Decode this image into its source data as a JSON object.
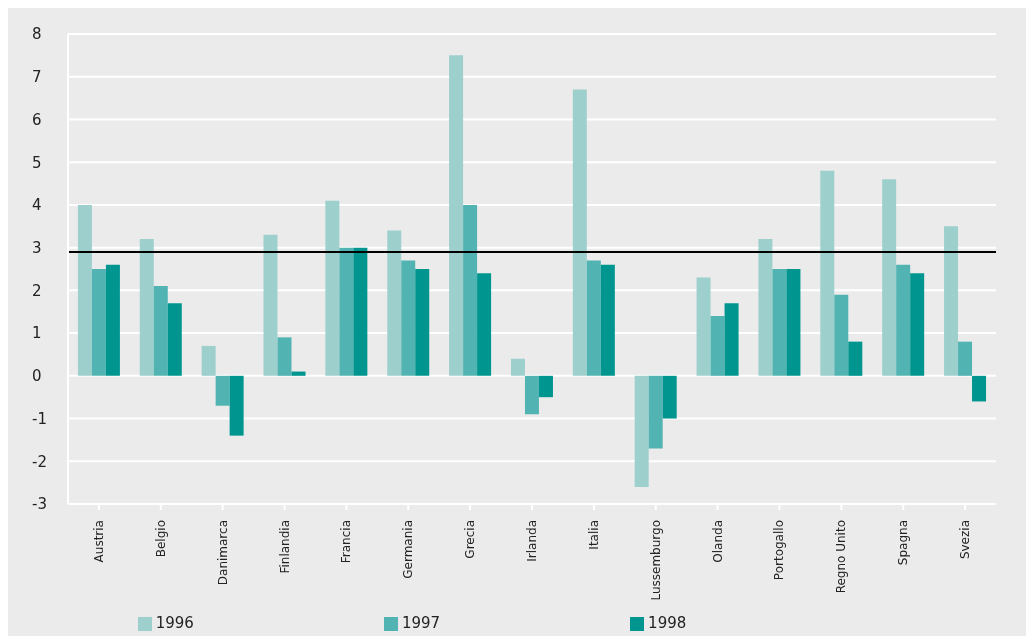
{
  "chart_data": {
    "type": "bar",
    "categories": [
      "Austria",
      "Belgio",
      "Danimarca",
      "Finlandia",
      "Francia",
      "Germania",
      "Grecia",
      "Irlanda",
      "Italia",
      "Lussemburgo",
      "Olanda",
      "Portogallo",
      "Regno Unito",
      "Spagna",
      "Svezia"
    ],
    "series": [
      {
        "name": "1996",
        "color": "#9dd0cd",
        "values": [
          4.0,
          3.2,
          0.7,
          3.3,
          4.1,
          3.4,
          7.5,
          0.4,
          6.7,
          -2.6,
          2.3,
          3.2,
          4.8,
          4.6,
          3.5
        ]
      },
      {
        "name": "1997",
        "color": "#52b4b2",
        "values": [
          2.5,
          2.1,
          -0.7,
          0.9,
          3.0,
          2.7,
          4.0,
          -0.9,
          2.7,
          -1.7,
          1.4,
          2.5,
          1.9,
          2.6,
          0.8
        ]
      },
      {
        "name": "1998",
        "color": "#00968f",
        "values": [
          2.6,
          1.7,
          -1.4,
          0.1,
          3.0,
          2.5,
          2.4,
          -0.5,
          2.6,
          -1.0,
          1.7,
          2.5,
          0.8,
          2.4,
          -0.6
        ]
      }
    ],
    "ylim": [
      -3,
      8
    ],
    "yticks": [
      -3,
      -2,
      -1,
      0,
      1,
      2,
      3,
      4,
      5,
      6,
      7,
      8
    ],
    "grid": "y",
    "legend": "bottom",
    "ref_lines": [
      {
        "axis": "y",
        "value": 2.9,
        "color": "#000000"
      }
    ]
  }
}
